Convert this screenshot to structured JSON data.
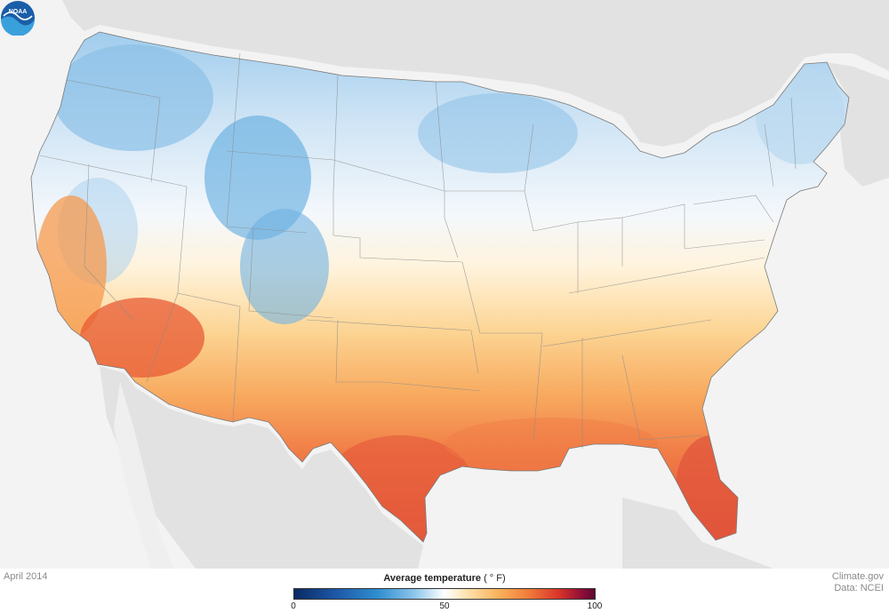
{
  "map": {
    "date": "April 2014",
    "legend": {
      "title": "Average temperature",
      "unit": "( ° F)",
      "min_label": "0",
      "mid_label": "50",
      "max_label": "100",
      "scale_min": 0,
      "scale_max": 100,
      "colors": {
        "cold": "#0a2a63",
        "cool": "#2f8fd0",
        "neutral": "#ffffff",
        "warm": "#f9b25b",
        "hot": "#d9342a",
        "extreme": "#5e0a34"
      }
    },
    "credit": {
      "source": "Climate.gov",
      "data": "Data: NCEI"
    },
    "logo": {
      "text": "NOAA",
      "icon": "noaa-logo-icon"
    },
    "background_color": "#f3f3f3",
    "land_color": "#e3e3e3"
  }
}
